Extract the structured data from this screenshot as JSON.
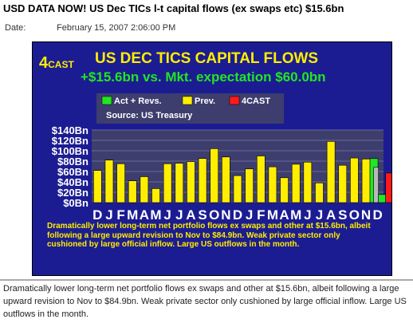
{
  "headline": "USD DATA NOW! US Dec TICs l-t capital flows (ex swaps etc) $15.6bn",
  "date_label": "Date:",
  "date_value": "February 15, 2007 2:06:00 PM",
  "brand": {
    "main": "4",
    "small": "CAST"
  },
  "commentary": "Dramatically lower long-term net portfolio flows ex swaps and other at $15.6bn, albeit following a large upward revision to Nov to $84.9bn. Weak private sector only cushioned by large official inflow. Large US outflows in the month.",
  "caption": "Dramatically lower long-term net portfolio flows ex swaps and other at $15.6bn, albeit following a large upward revision to Nov to $84.9bn. Weak private sector only cushioned by large official inflow. Large US outflows in the month.",
  "colors": {
    "panel": "#1c1c92",
    "yellow": "#ffee00",
    "green": "#22e622",
    "red": "#ff1a1a",
    "grey": "#b8b8b8"
  },
  "chart_data": {
    "type": "bar",
    "title": "US DEC TICS CAPITAL FLOWS",
    "subtitle": "+$15.6bn vs. Mkt. expectation $60.0bn",
    "source": "Source: US Treasury",
    "ylim": [
      0,
      140
    ],
    "yticks": [
      "$0Bn",
      "$20Bn",
      "$40Bn",
      "$60Bn",
      "$80Bn",
      "$100Bn",
      "$120Bn",
      "$140Bn"
    ],
    "grid": true,
    "legend_position": "top-left",
    "legend": [
      {
        "label": "Act + Revs.",
        "color": "#22e622"
      },
      {
        "label": "Prev.",
        "color": "#ffee00"
      },
      {
        "label": "4CAST",
        "color": "#ff1a1a"
      }
    ],
    "categories": [
      "D",
      "J",
      "F",
      "M",
      "A",
      "M",
      "J",
      "J",
      "A",
      "S",
      "O",
      "N",
      "D",
      "J",
      "F",
      "M",
      "A",
      "M",
      "J",
      "J",
      "A",
      "S",
      "O",
      "N",
      "D"
    ],
    "series": [
      {
        "name": "Prev.",
        "values": [
          62,
          82,
          75,
          42,
          50,
          27,
          75,
          76,
          79,
          85,
          104,
          88,
          52,
          65,
          90,
          69,
          48,
          74,
          78,
          38,
          118,
          72,
          86,
          84,
          null
        ]
      },
      {
        "name": "Act + Revs.",
        "values": [
          null,
          null,
          null,
          null,
          null,
          null,
          null,
          null,
          null,
          null,
          null,
          null,
          null,
          null,
          null,
          null,
          null,
          null,
          null,
          null,
          null,
          null,
          null,
          84.9,
          15.6
        ]
      },
      {
        "name": "4CAST",
        "values": [
          null,
          null,
          null,
          null,
          null,
          null,
          null,
          null,
          null,
          null,
          null,
          null,
          null,
          null,
          null,
          null,
          null,
          null,
          null,
          null,
          null,
          null,
          null,
          null,
          57
        ]
      }
    ],
    "grey_values": [
      null,
      null,
      null,
      null,
      null,
      null,
      null,
      null,
      null,
      null,
      null,
      null,
      null,
      null,
      null,
      null,
      null,
      null,
      null,
      null,
      null,
      null,
      null,
      null,
      68
    ]
  }
}
